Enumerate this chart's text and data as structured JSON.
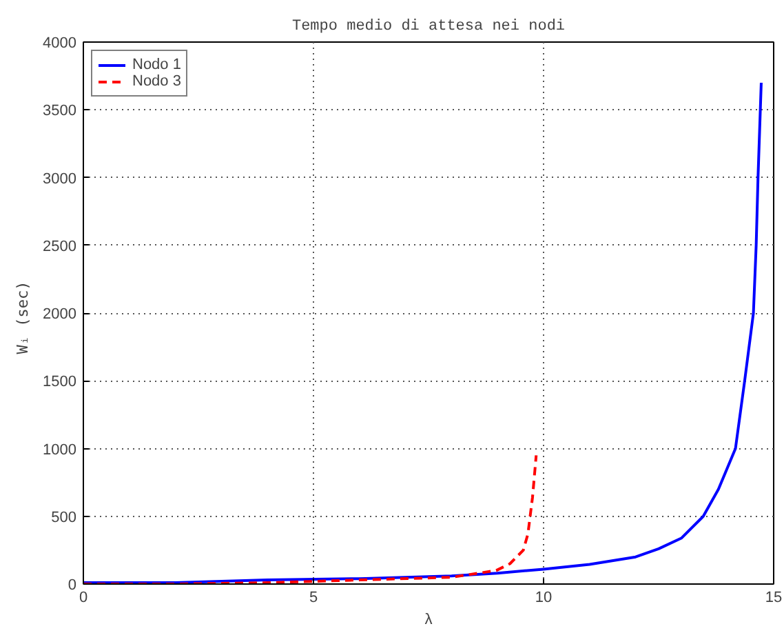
{
  "chart_data": {
    "type": "line",
    "title": "Tempo medio di attesa nei nodi",
    "xlabel": "λ",
    "ylabel": "Wᵢ  (sec)",
    "xlim": [
      0,
      15
    ],
    "ylim": [
      0,
      4000
    ],
    "xticks": [
      0,
      5,
      10,
      15
    ],
    "yticks": [
      0,
      500,
      1000,
      1500,
      2000,
      2500,
      3000,
      3500,
      4000
    ],
    "grid": true,
    "legend": "top left",
    "series": [
      {
        "name": "Nodo 1",
        "color": "#0000ff",
        "line_style": "solid",
        "x": [
          0,
          2,
          4,
          6,
          8,
          9,
          10,
          11,
          12,
          12.5,
          13,
          13.47,
          13.8,
          14.17,
          14.37,
          14.56,
          14.62,
          14.66,
          14.73
        ],
        "values": [
          10,
          10,
          30,
          40,
          60,
          80,
          110,
          145,
          200,
          260,
          340,
          500,
          700,
          1000,
          1500,
          2000,
          2500,
          3000,
          3700
        ]
      },
      {
        "name": "Nodo 3",
        "color": "#ff0000",
        "line_style": "dashed",
        "x": [
          0,
          2,
          4,
          6,
          8,
          8.97,
          9.27,
          9.56,
          9.66,
          9.76,
          9.84
        ],
        "values": [
          0,
          0,
          10,
          30,
          50,
          100,
          150,
          250,
          370,
          640,
          950
        ]
      }
    ]
  }
}
